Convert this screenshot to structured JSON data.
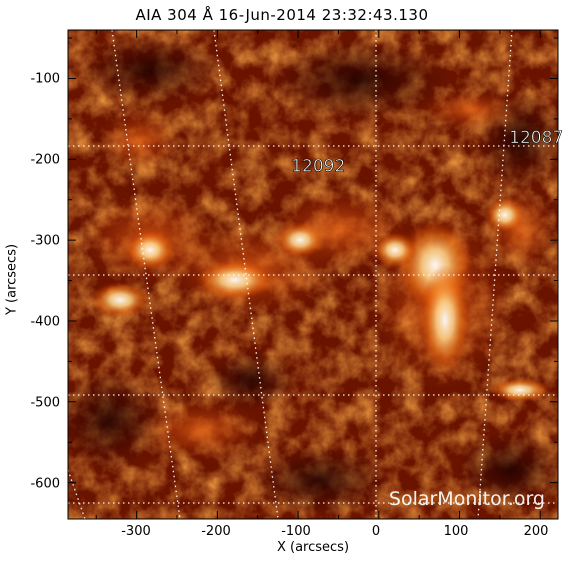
{
  "title": "AIA 304 Å 16-Jun-2014 23:32:43.130",
  "xlabel": "X (arcsecs)",
  "ylabel": "Y (arcsecs)",
  "x_ticks": [
    "-300",
    "-200",
    "-100",
    "0",
    "100",
    "200"
  ],
  "y_ticks": [
    "-100",
    "-200",
    "-300",
    "-400",
    "-500",
    "-600"
  ],
  "regions": [
    {
      "label": "12092",
      "x": -75,
      "y": -215
    },
    {
      "label": "12087",
      "x": 195,
      "y": -180
    }
  ],
  "watermark": "SolarMonitor.org",
  "axis_range": {
    "x": [
      -385,
      222
    ],
    "y": [
      -40,
      -645
    ]
  },
  "colors": {
    "dark": "#280000",
    "mid": "#b83a08",
    "bright": "#fff0c0"
  }
}
